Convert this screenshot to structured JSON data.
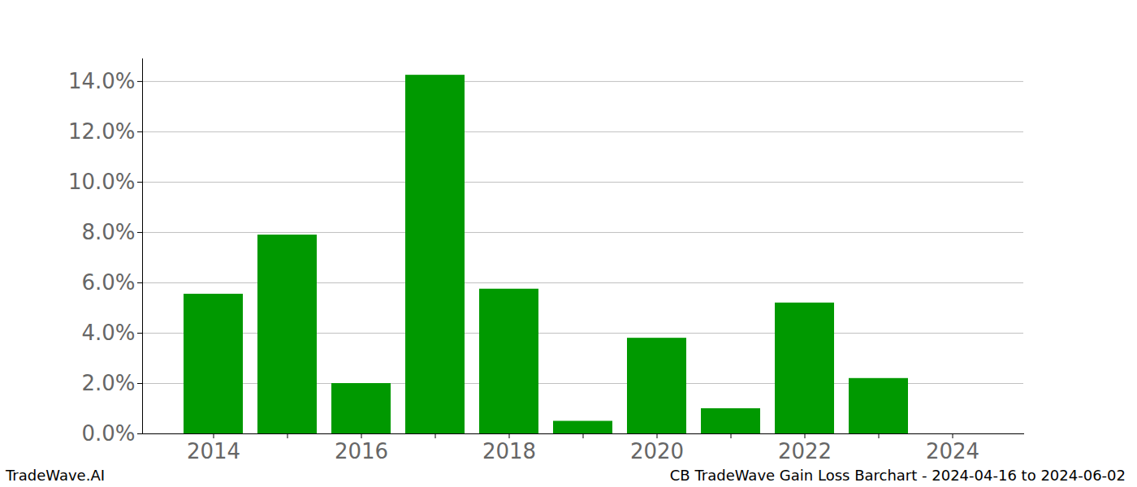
{
  "chart_data": {
    "type": "bar",
    "title": "CB TradeWave Gain Loss Barchart - 2024-04-16 to 2024-06-02",
    "source": "TradeWave.AI",
    "categories": [
      "2014",
      null,
      "2016",
      null,
      "2018",
      null,
      "2020",
      null,
      "2022",
      null,
      "2024"
    ],
    "values": [
      5.55,
      7.9,
      2.0,
      14.25,
      5.75,
      0.5,
      3.8,
      1.0,
      5.2,
      2.2,
      0
    ],
    "color": "#009900",
    "ylim": [
      0,
      14.9
    ],
    "yticks": [
      {
        "value": 0,
        "label": "0.0%"
      },
      {
        "value": 2,
        "label": "2.0%"
      },
      {
        "value": 4,
        "label": "4.0%"
      },
      {
        "value": 6,
        "label": "6.0%"
      },
      {
        "value": 8,
        "label": "8.0%"
      },
      {
        "value": 10,
        "label": "10.0%"
      },
      {
        "value": 12,
        "label": "12.0%"
      },
      {
        "value": 14,
        "label": "14.0%"
      }
    ],
    "grid": true
  }
}
